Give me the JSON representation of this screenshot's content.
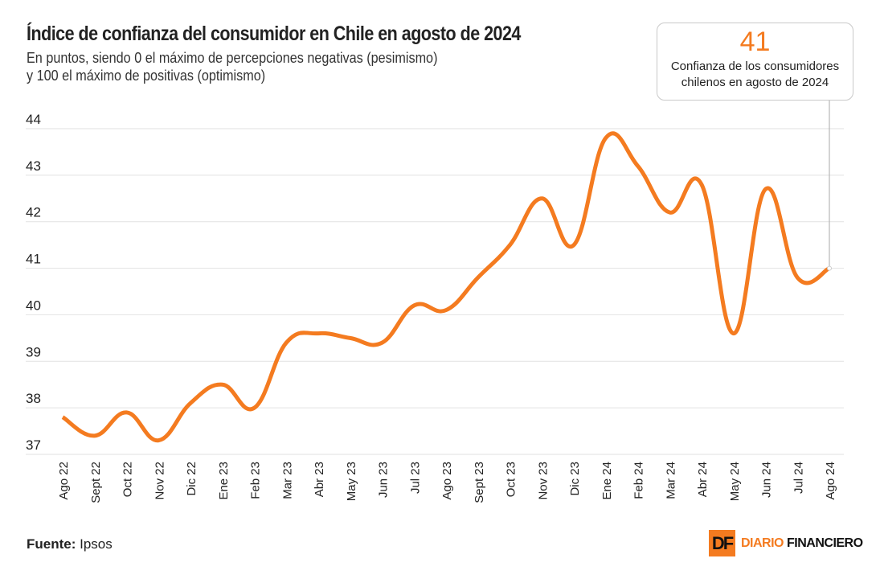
{
  "chart_data": {
    "type": "line",
    "title": "Índice de confianza del consumidor en Chile en agosto de 2024",
    "subtitle": [
      "En puntos, siendo 0 el máximo de percepciones negativas (pesimismo)",
      "y 100 el máximo de positivas (optimismo)"
    ],
    "xlabel": "",
    "ylabel": "",
    "categories": [
      "Ago 22",
      "Sept 22",
      "Oct 22",
      "Nov 22",
      "Dic 22",
      "Ene 23",
      "Feb 23",
      "Mar 23",
      "Abr 23",
      "May 23",
      "Jun 23",
      "Jul 23",
      "Ago 23",
      "Sept 23",
      "Oct 23",
      "Nov 23",
      "Dic 23",
      "Ene 24",
      "Feb 24",
      "Mar 24",
      "Abr 24",
      "May 24",
      "Jun 24",
      "Jul 24",
      "Ago 24"
    ],
    "values": [
      37.8,
      37.4,
      37.9,
      37.3,
      38.1,
      38.5,
      38.0,
      39.4,
      39.6,
      39.5,
      39.4,
      40.2,
      40.1,
      40.8,
      41.5,
      42.5,
      41.5,
      43.8,
      43.2,
      42.2,
      42.8,
      39.6,
      42.7,
      40.8,
      41.0
    ],
    "ylim": [
      37,
      44
    ],
    "yticks": [
      "37",
      "38",
      "39",
      "40",
      "41",
      "42",
      "43",
      "44"
    ],
    "grid": true,
    "line_color": "#f47b20",
    "annotation": {
      "value": "41",
      "text": "Confianza de los consumidores chilenos en agosto de 2024"
    }
  },
  "source": {
    "label": "Fuente:",
    "value": "Ipsos"
  },
  "logo": {
    "mark": "DF",
    "name_a": "DIARIO",
    "name_b": "FINANCIERO"
  }
}
